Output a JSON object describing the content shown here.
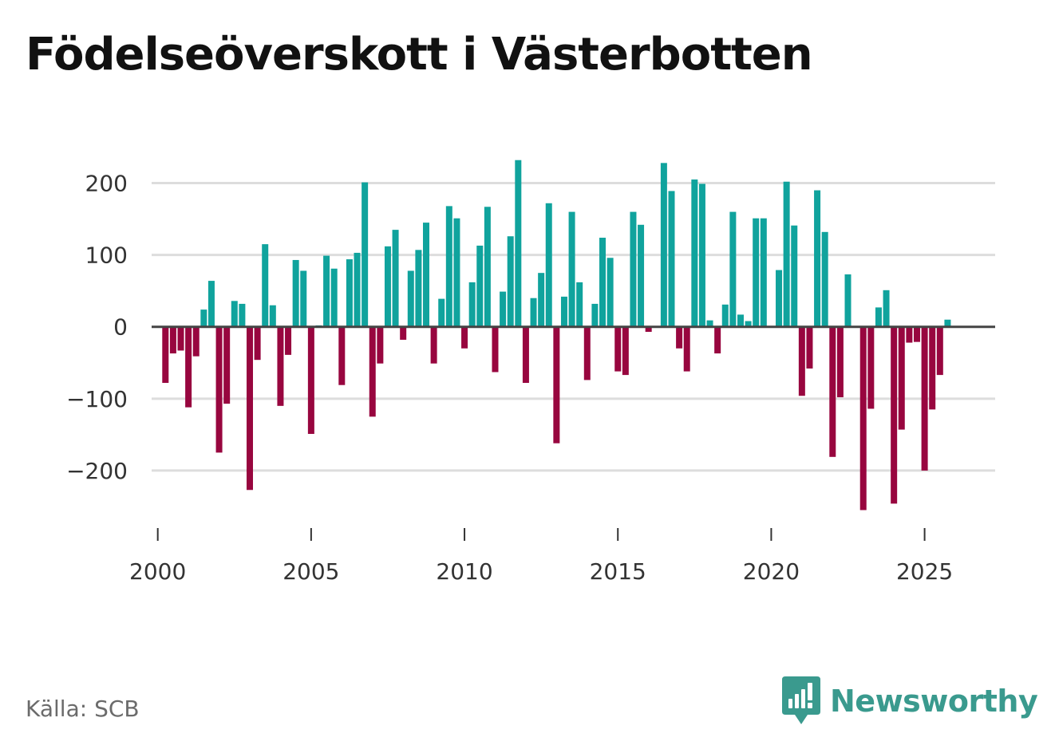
{
  "title": "Födelseöverskott i Västerbotten",
  "source": "Källa: SCB",
  "brand": {
    "name": "Newsworthy",
    "color": "#3a9a8e",
    "logo_icon": "newsworthy-logo-icon"
  },
  "colors": {
    "positive": "#10a39d",
    "negative": "#98063f",
    "grid": "#dddddd",
    "axis": "#444444"
  },
  "chart_data": {
    "type": "bar",
    "title": "Födelseöverskott i Västerbotten",
    "xlabel": "",
    "ylabel": "",
    "x_start": 2000.25,
    "x_step": 0.25,
    "xlim": [
      1999.8,
      2027.3
    ],
    "ylim": [
      -280,
      255
    ],
    "yticks": [
      -200,
      -100,
      0,
      100,
      200
    ],
    "ytick_labels": [
      "−200",
      "−100",
      "0",
      "100",
      "200"
    ],
    "xticks": [
      2000,
      2005,
      2010,
      2015,
      2020,
      2025
    ],
    "xtick_labels": [
      "2000",
      "2005",
      "2010",
      "2015",
      "2020",
      "2025"
    ],
    "grid": true,
    "values": [
      -78,
      -37,
      -33,
      -112,
      -41,
      24,
      64,
      -175,
      -107,
      36,
      32,
      -227,
      -46,
      115,
      30,
      -110,
      -39,
      93,
      78,
      -149,
      2,
      99,
      81,
      -81,
      94,
      103,
      201,
      -125,
      -51,
      112,
      135,
      -18,
      78,
      107,
      145,
      -51,
      39,
      168,
      151,
      -30,
      62,
      113,
      167,
      -63,
      49,
      126,
      232,
      -78,
      40,
      75,
      172,
      -162,
      42,
      160,
      62,
      -74,
      32,
      124,
      96,
      -62,
      -67,
      160,
      142,
      -7,
      0,
      228,
      189,
      -30,
      -62,
      205,
      199,
      9,
      -37,
      31,
      160,
      17,
      8,
      151,
      151,
      0,
      79,
      202,
      141,
      -96,
      -58,
      190,
      132,
      -181,
      -98,
      73,
      0,
      -255,
      -114,
      27,
      51,
      -246,
      -143,
      -22,
      -21,
      -200,
      -115,
      -67,
      10
    ]
  }
}
